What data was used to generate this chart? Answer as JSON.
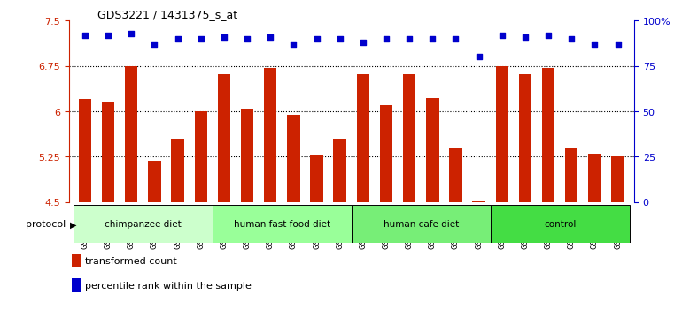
{
  "title": "GDS3221 / 1431375_s_at",
  "samples": [
    "GSM144707",
    "GSM144708",
    "GSM144709",
    "GSM144710",
    "GSM144711",
    "GSM144712",
    "GSM144713",
    "GSM144714",
    "GSM144715",
    "GSM144716",
    "GSM144717",
    "GSM144718",
    "GSM144719",
    "GSM144720",
    "GSM144721",
    "GSM144722",
    "GSM144723",
    "GSM144724",
    "GSM144725",
    "GSM144726",
    "GSM144727",
    "GSM144728",
    "GSM144729",
    "GSM144730"
  ],
  "bar_values": [
    6.2,
    6.15,
    6.75,
    5.18,
    5.55,
    6.0,
    6.62,
    6.05,
    6.72,
    5.94,
    5.28,
    5.55,
    6.62,
    6.1,
    6.62,
    6.22,
    5.4,
    4.52,
    6.75,
    6.62,
    6.72,
    5.4,
    5.3,
    5.26
  ],
  "percentile_values": [
    92,
    92,
    93,
    87,
    90,
    90,
    91,
    90,
    91,
    87,
    90,
    90,
    88,
    90,
    90,
    90,
    90,
    80,
    92,
    91,
    92,
    90,
    87,
    87
  ],
  "groups": [
    {
      "label": "chimpanzee diet",
      "start": 0,
      "end": 6,
      "color": "#ccffcc"
    },
    {
      "label": "human fast food diet",
      "start": 6,
      "end": 12,
      "color": "#99ff99"
    },
    {
      "label": "human cafe diet",
      "start": 12,
      "end": 18,
      "color": "#77ee77"
    },
    {
      "label": "control",
      "start": 18,
      "end": 24,
      "color": "#44dd44"
    }
  ],
  "ylim_left": [
    4.5,
    7.5
  ],
  "ylim_right": [
    0,
    100
  ],
  "yticks_left": [
    4.5,
    5.25,
    6.0,
    6.75,
    7.5
  ],
  "ytick_labels_left": [
    "4.5",
    "5.25",
    "6",
    "6.75",
    "7.5"
  ],
  "yticks_right": [
    0,
    25,
    50,
    75,
    100
  ],
  "ytick_labels_right": [
    "0",
    "25",
    "50",
    "75",
    "100%"
  ],
  "bar_color": "#cc2200",
  "dot_color": "#0000cc",
  "bar_width": 0.55,
  "protocol_label": "protocol",
  "legend_bar_label": "transformed count",
  "legend_dot_label": "percentile rank within the sample",
  "background_color": "#ffffff",
  "figsize": [
    7.51,
    3.54
  ],
  "dpi": 100
}
